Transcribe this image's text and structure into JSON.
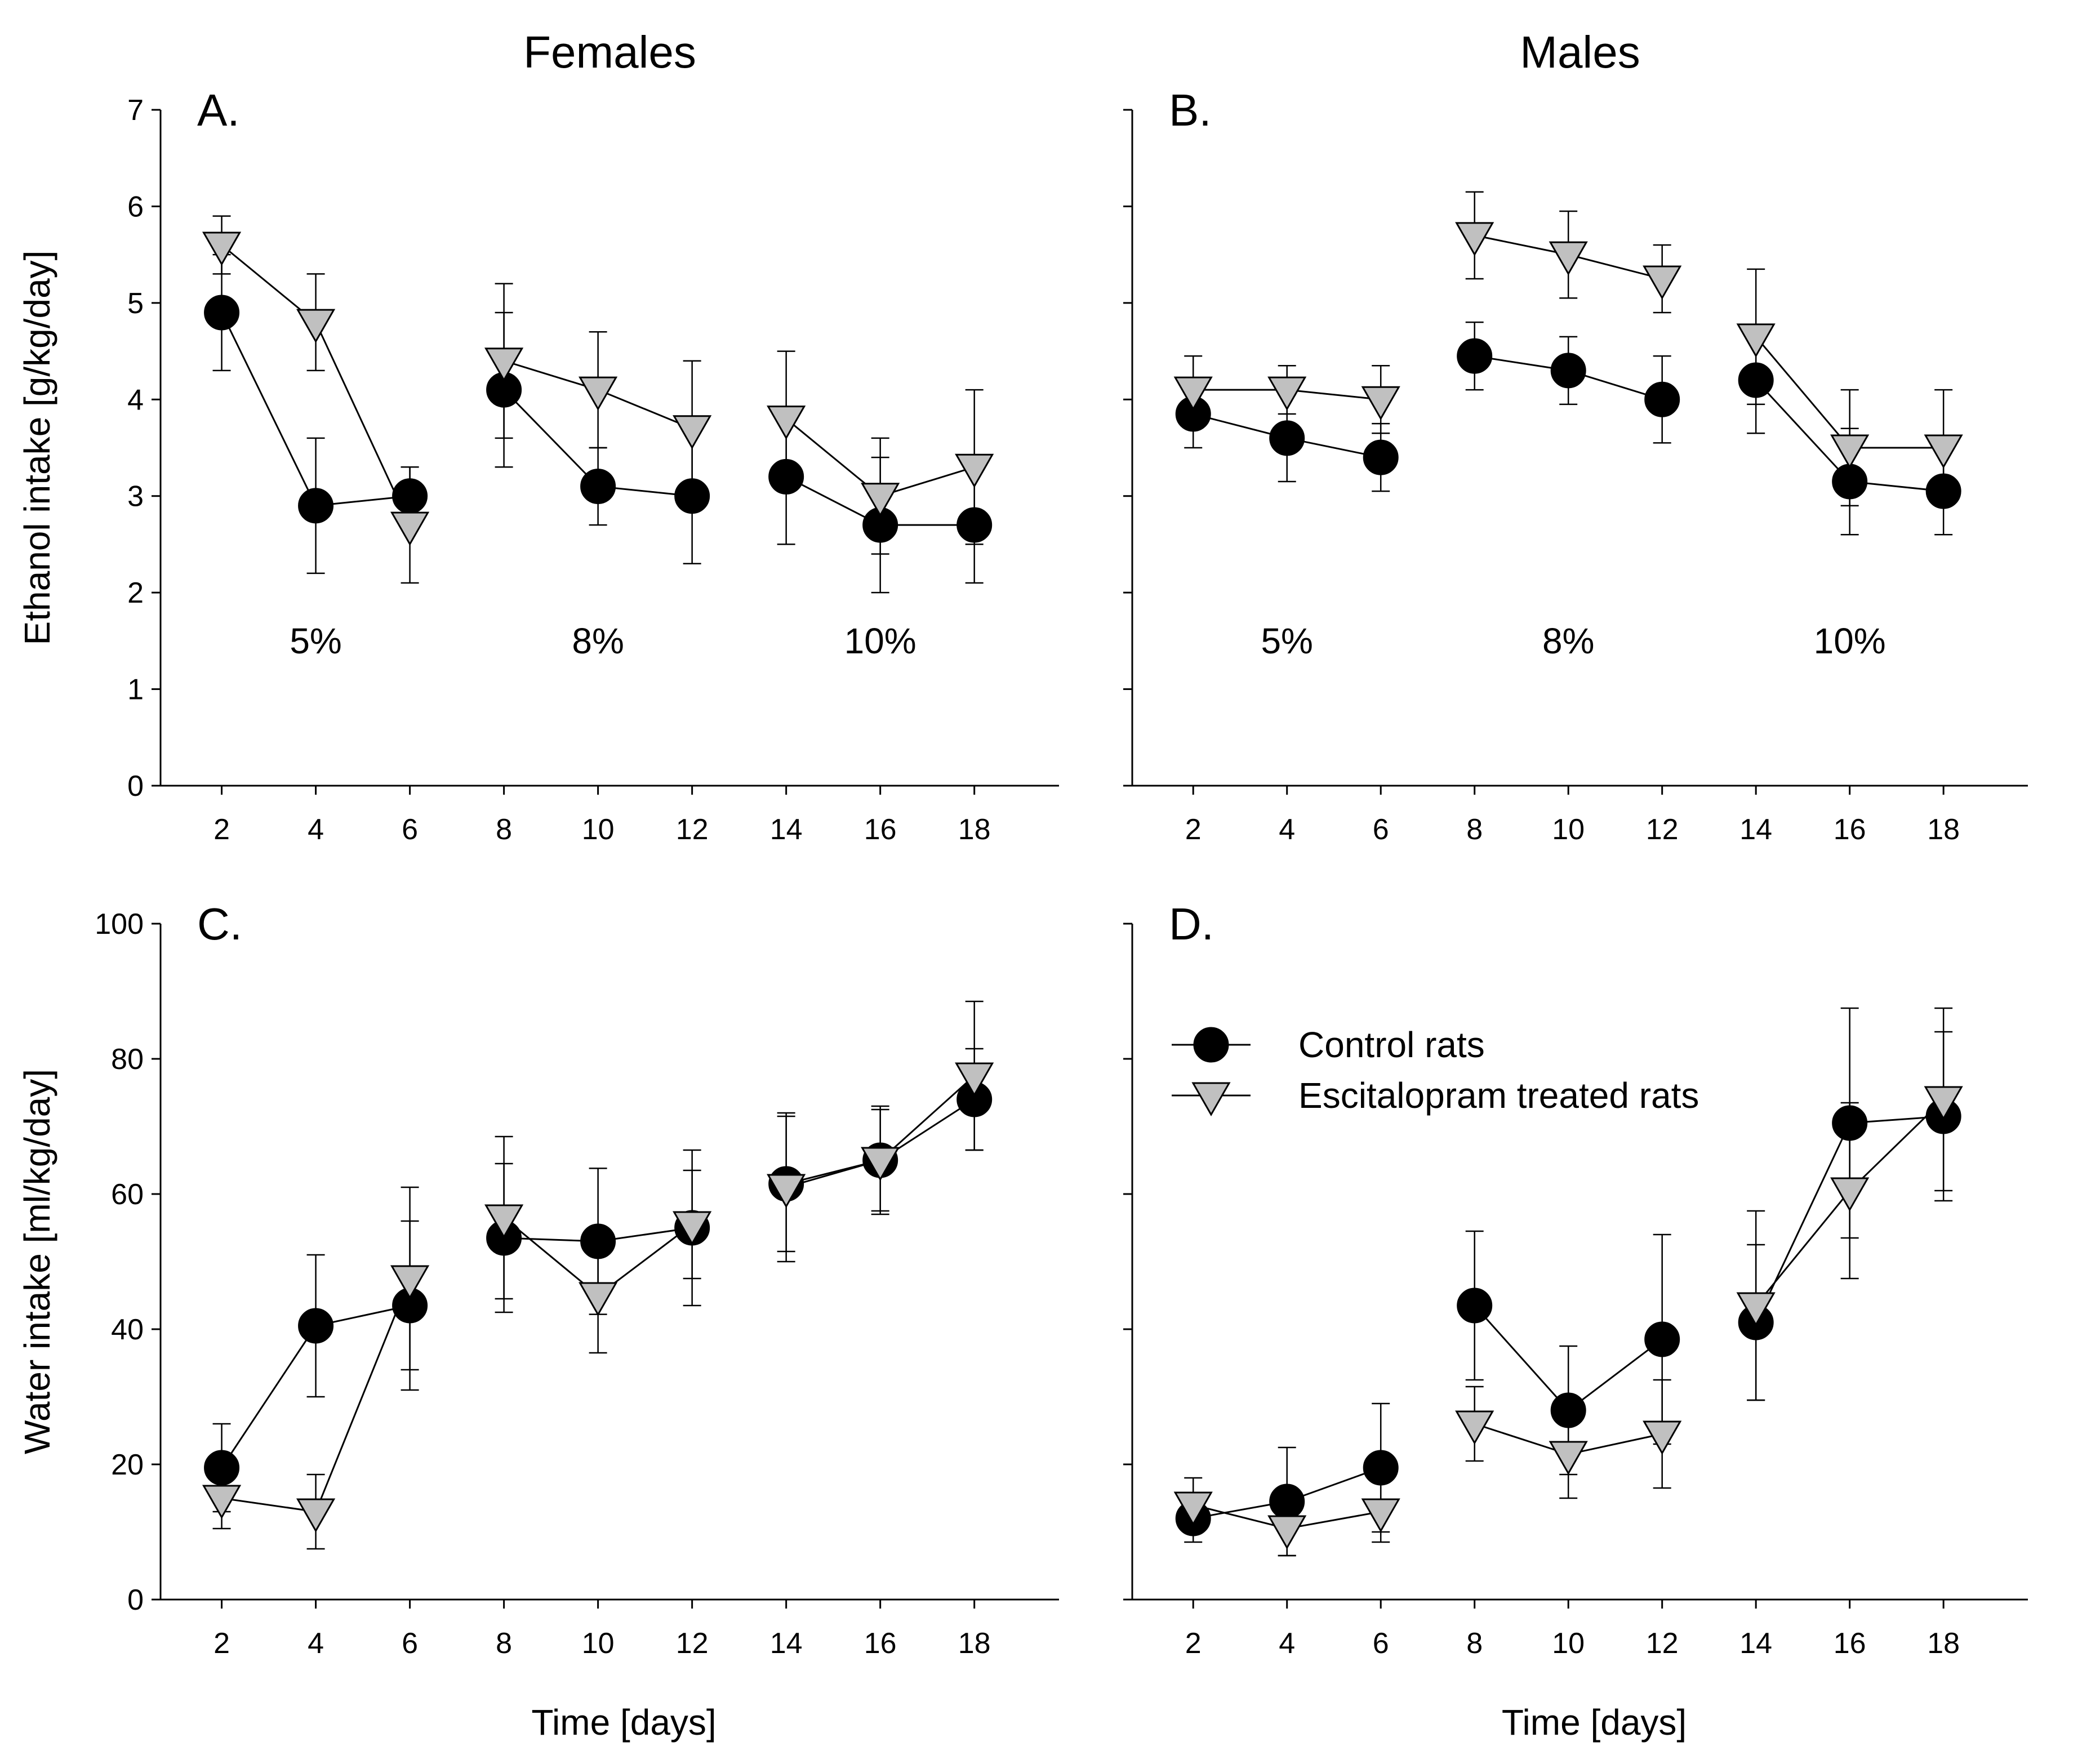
{
  "chart_data": [
    {
      "panel_label": "A.",
      "column_title": "Females",
      "type": "line",
      "xlabel": "",
      "ylabel": "Ethanol intake [g/kg/day]",
      "x_ticks": [
        "2",
        "4",
        "6",
        "8",
        "10",
        "12",
        "14",
        "16",
        "18"
      ],
      "y_ticks": [
        "0",
        "1",
        "2",
        "3",
        "4",
        "5",
        "6",
        "7"
      ],
      "show_y_tick_labels": true,
      "ylim": [
        0,
        7
      ],
      "y_step": 1,
      "xlim": [
        0.7,
        19.8
      ],
      "concentration_labels": [
        {
          "text": "5%",
          "x": 4,
          "y": 1.5
        },
        {
          "text": "8%",
          "x": 10,
          "y": 1.5
        },
        {
          "text": "10%",
          "x": 16,
          "y": 1.5
        }
      ],
      "segments": [
        [
          2,
          4,
          6
        ],
        [
          8,
          10,
          12
        ],
        [
          14,
          16,
          18
        ]
      ],
      "series": [
        {
          "name": "Control rats",
          "marker": "circle",
          "x": [
            2,
            4,
            6,
            8,
            10,
            12,
            14,
            16,
            18
          ],
          "values": [
            4.9,
            2.9,
            3.0,
            4.1,
            3.1,
            3.0,
            3.2,
            2.7,
            2.7
          ],
          "err": [
            0.6,
            0.7,
            0.3,
            0.8,
            0.4,
            0.7,
            0.7,
            0.7,
            0.6
          ]
        },
        {
          "name": "Escitalopram treated rats",
          "marker": "triangle-down",
          "x": [
            2,
            4,
            6,
            8,
            10,
            12,
            14,
            16,
            18
          ],
          "values": [
            5.6,
            4.8,
            2.7,
            4.4,
            4.1,
            3.7,
            3.8,
            3.0,
            3.3
          ],
          "err": [
            0.3,
            0.5,
            0.6,
            0.8,
            0.6,
            0.7,
            0.7,
            0.6,
            0.8
          ]
        }
      ]
    },
    {
      "panel_label": "B.",
      "column_title": "Males",
      "type": "line",
      "xlabel": "",
      "ylabel": "",
      "x_ticks": [
        "2",
        "4",
        "6",
        "8",
        "10",
        "12",
        "14",
        "16",
        "18"
      ],
      "y_ticks": [
        "0",
        "1",
        "2",
        "3",
        "4",
        "5",
        "6",
        "7"
      ],
      "show_y_tick_labels": false,
      "ylim": [
        0,
        7
      ],
      "y_step": 1,
      "xlim": [
        0.7,
        19.8
      ],
      "concentration_labels": [
        {
          "text": "5%",
          "x": 4,
          "y": 1.5
        },
        {
          "text": "8%",
          "x": 10,
          "y": 1.5
        },
        {
          "text": "10%",
          "x": 16,
          "y": 1.5
        }
      ],
      "segments": [
        [
          2,
          4,
          6
        ],
        [
          8,
          10,
          12
        ],
        [
          14,
          16,
          18
        ]
      ],
      "series": [
        {
          "name": "Control rats",
          "marker": "circle",
          "x": [
            2,
            4,
            6,
            8,
            10,
            12,
            14,
            16,
            18
          ],
          "values": [
            3.85,
            3.6,
            3.4,
            4.45,
            4.3,
            4.0,
            4.2,
            3.15,
            3.05
          ],
          "err": [
            0.35,
            0.45,
            0.35,
            0.35,
            0.35,
            0.45,
            0.55,
            0.55,
            0.45
          ]
        },
        {
          "name": "Escitalopram treated rats",
          "marker": "triangle-down",
          "x": [
            2,
            4,
            6,
            8,
            10,
            12,
            14,
            16,
            18
          ],
          "values": [
            4.1,
            4.1,
            4.0,
            5.7,
            5.5,
            5.25,
            4.65,
            3.5,
            3.5
          ],
          "err": [
            0.35,
            0.25,
            0.35,
            0.45,
            0.45,
            0.35,
            0.7,
            0.6,
            0.6
          ]
        }
      ]
    },
    {
      "panel_label": "C.",
      "column_title": "",
      "type": "line",
      "xlabel": "Time [days]",
      "ylabel": "Water intake [ml/kg/day]",
      "x_ticks": [
        "2",
        "4",
        "6",
        "8",
        "10",
        "12",
        "14",
        "16",
        "18"
      ],
      "y_ticks": [
        "0",
        "20",
        "40",
        "60",
        "80",
        "100"
      ],
      "show_y_tick_labels": true,
      "ylim": [
        0,
        100
      ],
      "y_step": 20,
      "xlim": [
        0.7,
        19.8
      ],
      "concentration_labels": [],
      "segments": [
        [
          2,
          4,
          6
        ],
        [
          8,
          10,
          12
        ],
        [
          14,
          16,
          18
        ]
      ],
      "series": [
        {
          "name": "Control rats",
          "marker": "circle",
          "x": [
            2,
            4,
            6,
            8,
            10,
            12,
            14,
            16,
            18
          ],
          "values": [
            19.5,
            40.5,
            43.5,
            53.5,
            53.0,
            55.0,
            61.5,
            65.0,
            74.0
          ],
          "err": [
            6.5,
            10.5,
            12.5,
            11.0,
            10.8,
            11.5,
            10.0,
            7.5,
            7.5
          ]
        },
        {
          "name": "Escitalopram treated rats",
          "marker": "triangle-down",
          "x": [
            2,
            4,
            6,
            8,
            10,
            12,
            14,
            16,
            18
          ],
          "values": [
            15.0,
            13.0,
            47.5,
            56.5,
            45.0,
            55.5,
            61.0,
            65.0,
            77.5
          ],
          "err": [
            4.5,
            5.5,
            13.5,
            12.0,
            8.5,
            8.0,
            11.0,
            8.0,
            11.0
          ]
        }
      ]
    },
    {
      "panel_label": "D.",
      "column_title": "",
      "type": "line",
      "xlabel": "Time [days]",
      "ylabel": "",
      "x_ticks": [
        "2",
        "4",
        "6",
        "8",
        "10",
        "12",
        "14",
        "16",
        "18"
      ],
      "y_ticks": [
        "0",
        "20",
        "40",
        "60",
        "80",
        "100"
      ],
      "show_y_tick_labels": false,
      "ylim": [
        0,
        100
      ],
      "y_step": 20,
      "xlim": [
        0.7,
        19.8
      ],
      "concentration_labels": [],
      "segments": [
        [
          2,
          4,
          6
        ],
        [
          8,
          10,
          12
        ],
        [
          14,
          16,
          18
        ]
      ],
      "legend": {
        "position": "top-left",
        "entries": [
          {
            "label": "Control rats",
            "marker": "circle"
          },
          {
            "label": "Escitalopram treated rats",
            "marker": "triangle-down"
          }
        ]
      },
      "series": [
        {
          "name": "Control rats",
          "marker": "circle",
          "x": [
            2,
            4,
            6,
            8,
            10,
            12,
            14,
            16,
            18
          ],
          "values": [
            12.0,
            14.5,
            19.5,
            43.5,
            28.0,
            38.5,
            41.0,
            70.5,
            71.5
          ],
          "err": [
            3.5,
            8.0,
            9.5,
            11.0,
            9.5,
            15.5,
            11.5,
            17.0,
            12.5
          ]
        },
        {
          "name": "Escitalopram treated rats",
          "marker": "triangle-down",
          "x": [
            2,
            4,
            6,
            8,
            10,
            12,
            14,
            16,
            18
          ],
          "values": [
            14.0,
            10.5,
            13.0,
            26.0,
            21.5,
            24.5,
            43.5,
            60.5,
            74.0
          ],
          "err": [
            4.0,
            4.0,
            4.5,
            5.5,
            6.5,
            8.0,
            14.0,
            13.0,
            13.5
          ]
        }
      ]
    }
  ],
  "colors": {
    "control_fill": "#000000",
    "escitalopram_fill": "#c0c0c0",
    "stroke": "#000000"
  }
}
